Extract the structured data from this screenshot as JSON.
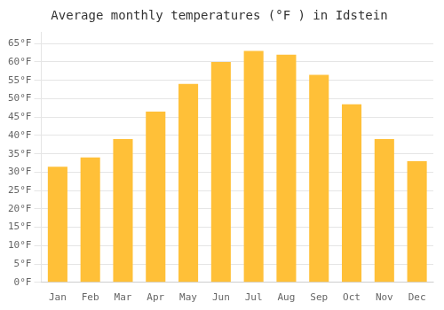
{
  "chart_data": {
    "type": "bar",
    "title": "Average monthly temperatures (°F ) in Idstein",
    "categories": [
      "Jan",
      "Feb",
      "Mar",
      "Apr",
      "May",
      "Jun",
      "Jul",
      "Aug",
      "Sep",
      "Oct",
      "Nov",
      "Dec"
    ],
    "values": [
      31.5,
      34.0,
      39.0,
      46.5,
      54.0,
      60.0,
      63.0,
      62.0,
      56.5,
      48.5,
      39.0,
      33.0
    ],
    "color": "#FFC038",
    "ylim": [
      0,
      68
    ],
    "yticks": [
      {
        "value": 0,
        "label": "0°F"
      },
      {
        "value": 5,
        "label": "5°F"
      },
      {
        "value": 10,
        "label": "10°F"
      },
      {
        "value": 15,
        "label": "15°F"
      },
      {
        "value": 20,
        "label": "20°F"
      },
      {
        "value": 25,
        "label": "25°F"
      },
      {
        "value": 30,
        "label": "30°F"
      },
      {
        "value": 35,
        "label": "35°F"
      },
      {
        "value": 40,
        "label": "40°F"
      },
      {
        "value": 45,
        "label": "45°F"
      },
      {
        "value": 50,
        "label": "50°F"
      },
      {
        "value": 55,
        "label": "55°F"
      },
      {
        "value": 60,
        "label": "60°F"
      },
      {
        "value": 65,
        "label": "65°F"
      }
    ],
    "grid": true
  }
}
